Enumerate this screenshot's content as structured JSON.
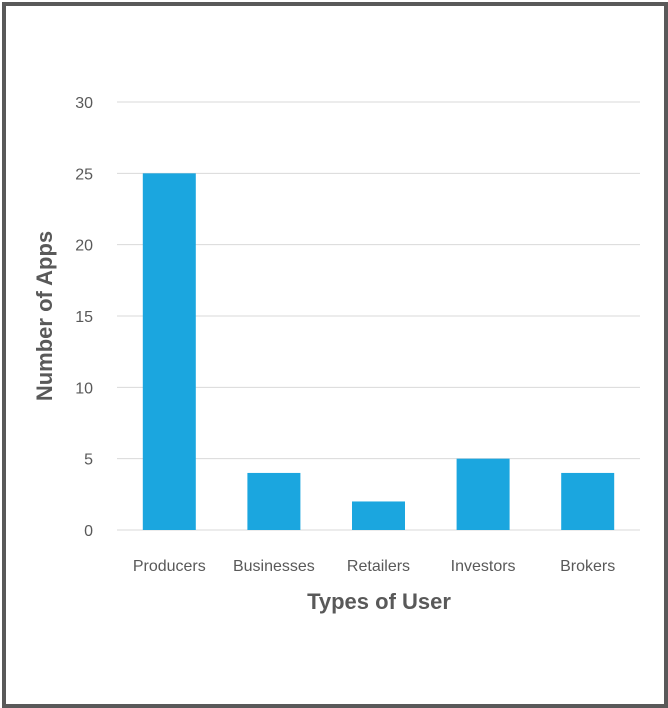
{
  "chart_data": {
    "type": "bar",
    "title": "",
    "xlabel": "Types of User",
    "ylabel": "Number of Apps",
    "categories": [
      "Producers",
      "Businesses",
      "Retailers",
      "Investors",
      "Brokers"
    ],
    "values": [
      25,
      4,
      2,
      5,
      4
    ],
    "ylim": [
      0,
      30
    ],
    "yticks": [
      0,
      5,
      10,
      15,
      20,
      25,
      30
    ],
    "grid": true,
    "legend": "none",
    "colors": {
      "bar": "#1ba6df",
      "grid": "#d9d9d9",
      "text": "#595959",
      "frame": "#595959"
    }
  }
}
